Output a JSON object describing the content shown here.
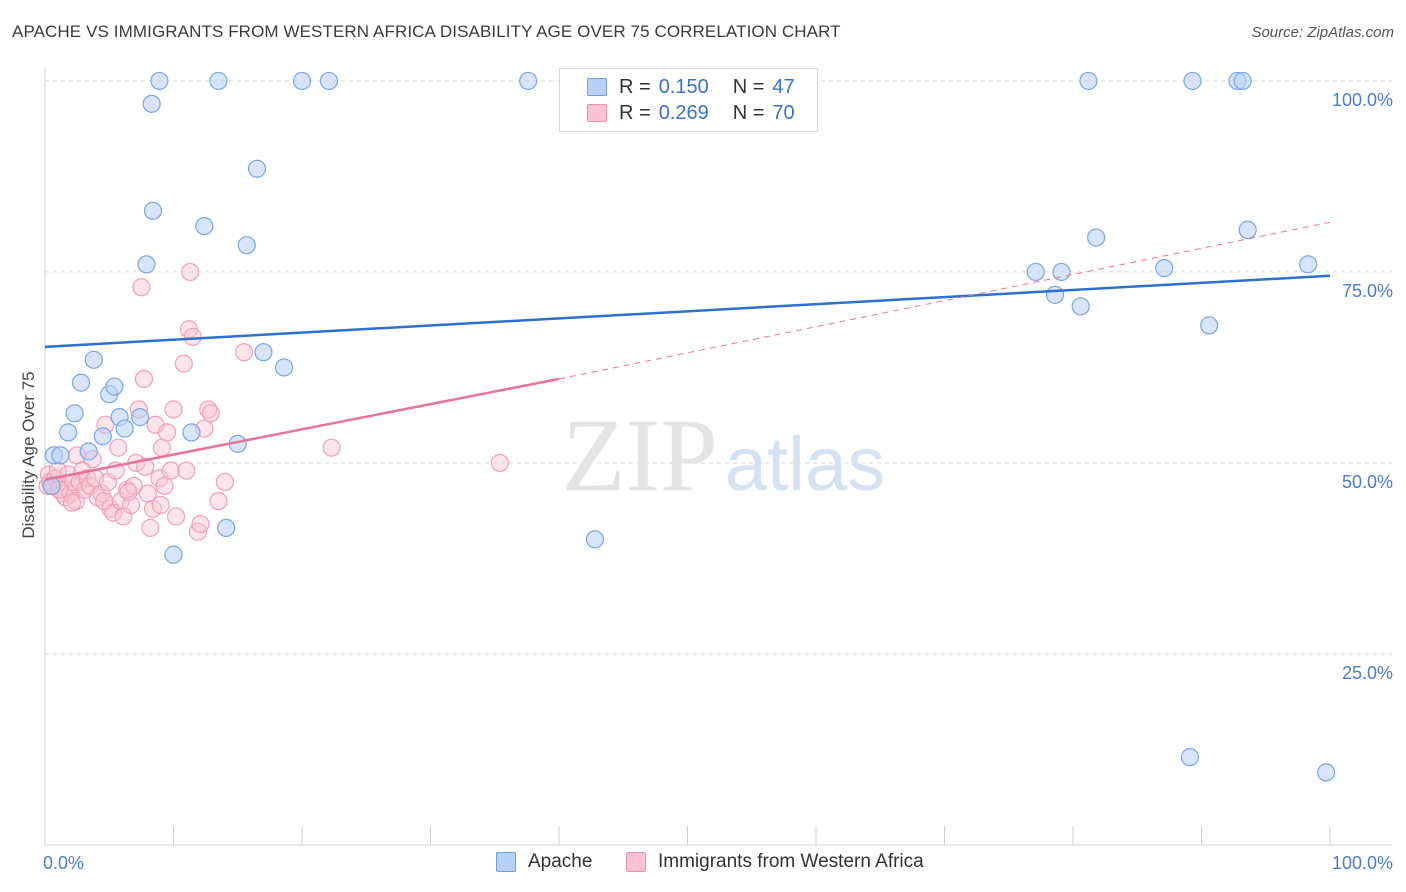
{
  "title": "APACHE VS IMMIGRANTS FROM WESTERN AFRICA DISABILITY AGE OVER 75 CORRELATION CHART",
  "source": "Source: ZipAtlas.com",
  "watermark": {
    "zip": "ZIP",
    "atlas": "atlas"
  },
  "legend": {
    "r_label": "R =",
    "n_label": "N =",
    "series": [
      {
        "name": "Apache",
        "r": "0.150",
        "n": "47",
        "fill": "#b7d0f5",
        "stroke": "#6e9fe0"
      },
      {
        "name": "Immigrants from Western Africa",
        "r": "0.269",
        "n": "70",
        "fill": "#f9c3d3",
        "stroke": "#ee8eab"
      }
    ]
  },
  "colors": {
    "blue_line": "#2f6fd0",
    "pink_line": "#e8739a",
    "grid": "#d9d9d9",
    "axis": "#cfcfcf"
  },
  "chart_data": {
    "type": "scatter",
    "title": "APACHE VS IMMIGRANTS FROM WESTERN AFRICA DISABILITY AGE OVER 75 CORRELATION CHART",
    "xlabel": "",
    "ylabel": "Disability Age Over 75",
    "xlim": [
      0,
      100
    ],
    "ylim": [
      0,
      102
    ],
    "x_tick_labels": [
      "0.0%",
      "100.0%"
    ],
    "y_ticks": [
      25,
      50,
      75,
      100
    ],
    "y_tick_labels": [
      "25.0%",
      "50.0%",
      "75.0%",
      "100.0%"
    ],
    "grid": true,
    "series": [
      {
        "name": "Apache",
        "color": "#6e9fe0",
        "points": [
          [
            0.5,
            47
          ],
          [
            0.7,
            51
          ],
          [
            1.2,
            51
          ],
          [
            1.8,
            54
          ],
          [
            2.3,
            56.5
          ],
          [
            2.8,
            60.5
          ],
          [
            3.8,
            63.5
          ],
          [
            3.4,
            51.5
          ],
          [
            4.5,
            53.5
          ],
          [
            5,
            59
          ],
          [
            5.4,
            60
          ],
          [
            5.8,
            56
          ],
          [
            6.2,
            54.5
          ],
          [
            7.4,
            56
          ],
          [
            7.9,
            76
          ],
          [
            8.4,
            83
          ],
          [
            8.3,
            97
          ],
          [
            8.9,
            100
          ],
          [
            10,
            38
          ],
          [
            11.4,
            54
          ],
          [
            12.4,
            81
          ],
          [
            13.5,
            100
          ],
          [
            14.1,
            41.5
          ],
          [
            15,
            52.5
          ],
          [
            15.7,
            78.5
          ],
          [
            16.5,
            88.5
          ],
          [
            17,
            64.5
          ],
          [
            18.6,
            62.5
          ],
          [
            20,
            100
          ],
          [
            22.1,
            100
          ],
          [
            37.6,
            100
          ],
          [
            42.8,
            40
          ],
          [
            77.1,
            75
          ],
          [
            78.6,
            72
          ],
          [
            79.1,
            75
          ],
          [
            80.6,
            70.5
          ],
          [
            81.2,
            100
          ],
          [
            81.8,
            79.5
          ],
          [
            87.1,
            75.5
          ],
          [
            89.1,
            11.5
          ],
          [
            89.3,
            100
          ],
          [
            90.6,
            68
          ],
          [
            92.8,
            100
          ],
          [
            93.2,
            100
          ],
          [
            93.6,
            80.5
          ],
          [
            98.3,
            76
          ],
          [
            99.7,
            9.5
          ]
        ]
      },
      {
        "name": "Immigrants from Western Africa",
        "color": "#ee8eab",
        "points": [
          [
            0.2,
            47
          ],
          [
            0.3,
            48.5
          ],
          [
            0.4,
            47.5
          ],
          [
            0.6,
            47
          ],
          [
            0.8,
            48
          ],
          [
            1,
            49
          ],
          [
            1.2,
            47
          ],
          [
            1.4,
            46
          ],
          [
            1.6,
            45.5
          ],
          [
            1.8,
            48.5
          ],
          [
            2,
            46
          ],
          [
            2.2,
            47.5
          ],
          [
            2.4,
            45
          ],
          [
            2.5,
            51
          ],
          [
            2.7,
            47.5
          ],
          [
            2.9,
            49
          ],
          [
            3.1,
            46.5
          ],
          [
            3.3,
            48
          ],
          [
            3.5,
            47
          ],
          [
            3.7,
            50.5
          ],
          [
            3.9,
            48
          ],
          [
            4.1,
            45.5
          ],
          [
            4.4,
            46
          ],
          [
            4.7,
            55
          ],
          [
            4.9,
            47.5
          ],
          [
            5.1,
            44
          ],
          [
            5.3,
            43.5
          ],
          [
            5.5,
            49
          ],
          [
            5.7,
            52
          ],
          [
            5.9,
            45
          ],
          [
            6.1,
            43
          ],
          [
            6.4,
            46.5
          ],
          [
            6.7,
            44.5
          ],
          [
            6.9,
            47
          ],
          [
            7.1,
            50
          ],
          [
            7.3,
            57
          ],
          [
            7.5,
            73
          ],
          [
            7.7,
            61
          ],
          [
            7.8,
            49.5
          ],
          [
            8,
            46
          ],
          [
            8.2,
            41.5
          ],
          [
            8.4,
            44
          ],
          [
            8.6,
            55
          ],
          [
            8.9,
            48
          ],
          [
            9.1,
            52
          ],
          [
            9.3,
            47
          ],
          [
            9.5,
            54
          ],
          [
            9.8,
            49
          ],
          [
            10,
            57
          ],
          [
            10.2,
            43
          ],
          [
            10.8,
            63
          ],
          [
            11,
            49
          ],
          [
            11.2,
            67.5
          ],
          [
            11.3,
            75
          ],
          [
            11.5,
            66.5
          ],
          [
            11.9,
            41
          ],
          [
            12.1,
            42
          ],
          [
            12.4,
            54.5
          ],
          [
            12.7,
            57
          ],
          [
            12.9,
            56.5
          ],
          [
            13.5,
            45
          ],
          [
            14,
            47.5
          ],
          [
            15.5,
            64.5
          ],
          [
            22.3,
            52
          ],
          [
            35.4,
            50
          ],
          [
            1.1,
            46.5
          ],
          [
            2.1,
            44.8
          ],
          [
            4.6,
            45
          ],
          [
            6.5,
            46.2
          ],
          [
            9.0,
            44.5
          ]
        ]
      }
    ],
    "trend_lines": [
      {
        "series": "Apache",
        "x": [
          0,
          100
        ],
        "y": [
          65.2,
          74.5
        ],
        "style": "solid"
      },
      {
        "series": "Immigrants from Western Africa",
        "x": [
          0,
          40
        ],
        "y": [
          47.8,
          61
        ],
        "style": "solid"
      },
      {
        "series": "Immigrants from Western Africa",
        "x": [
          40,
          100
        ],
        "y": [
          61,
          81.5
        ],
        "style": "dashed"
      }
    ]
  }
}
